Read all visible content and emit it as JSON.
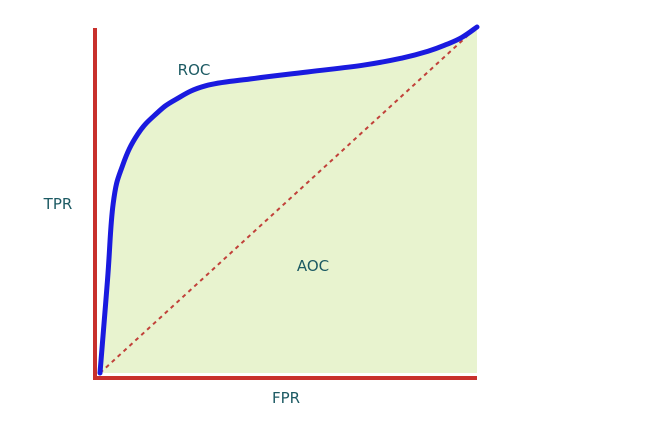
{
  "chart_data": {
    "type": "area",
    "xlabel": "FPR",
    "ylabel": "TPR",
    "xlim": [
      0,
      1
    ],
    "ylim": [
      0,
      1
    ],
    "grid": false,
    "series": [
      {
        "name": "ROC",
        "x": [
          0.0,
          0.02,
          0.035,
          0.06,
          0.1,
          0.15,
          0.2,
          0.28,
          0.4,
          0.55,
          0.7,
          0.8,
          0.87,
          0.92,
          0.96,
          1.0
        ],
        "y": [
          0.0,
          0.27,
          0.49,
          0.6,
          0.69,
          0.75,
          0.79,
          0.83,
          0.85,
          0.87,
          0.89,
          0.91,
          0.93,
          0.95,
          0.97,
          1.0
        ]
      },
      {
        "name": "",
        "x": [
          0.0,
          1.0
        ],
        "y": [
          0.0,
          1.0
        ]
      }
    ],
    "annotations": [
      {
        "text": "ROC",
        "x": 0.2,
        "y": 0.9
      },
      {
        "text": "AOC",
        "x": 0.55,
        "y": 0.3
      }
    ],
    "colors": {
      "roc": "#1a1adf",
      "diagonal": "#c1413a",
      "fill": "#e8f3cf",
      "axis": "#c8302c",
      "label": "#1c5a63"
    }
  }
}
